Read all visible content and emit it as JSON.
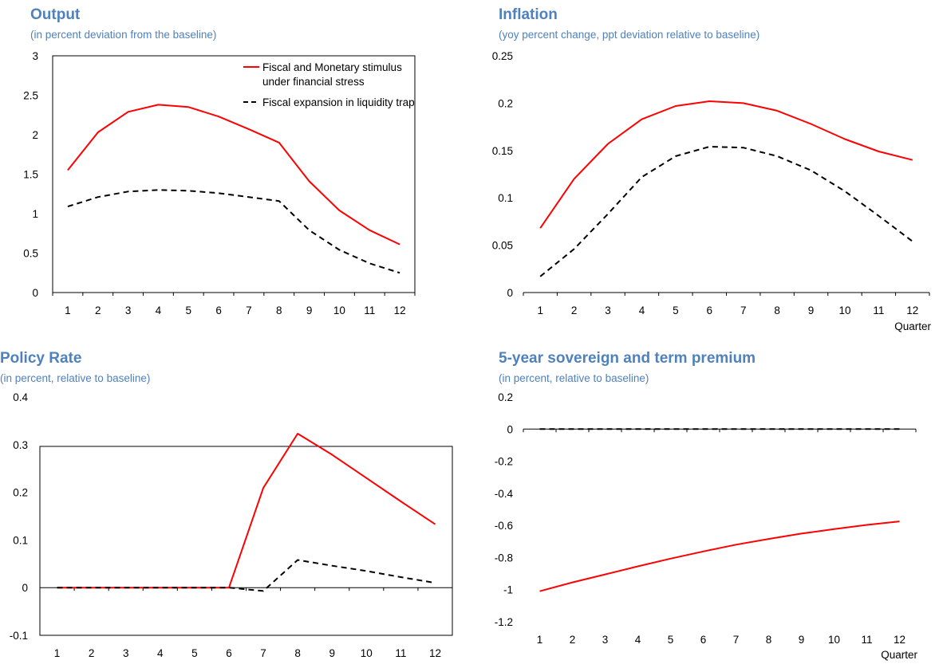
{
  "colors": {
    "title": "#4f81bd",
    "series1": "#ff0000",
    "series2": "#000000"
  },
  "chart_data": [
    {
      "type": "line",
      "title": "Output",
      "subtitle": "(in percent deviation from the baseline)",
      "xlabel": "",
      "x": [
        1,
        2,
        3,
        4,
        5,
        6,
        7,
        8,
        9,
        10,
        11,
        12
      ],
      "ylim": [
        0,
        3
      ],
      "yticks": [
        "0",
        "0.5",
        "1",
        "1.5",
        "2",
        "2.5",
        "3"
      ],
      "ytick_values": [
        0,
        0.5,
        1,
        1.5,
        2,
        2.5,
        3
      ],
      "box": true,
      "legend": {
        "position": "top-right",
        "entries": [
          "Fiscal and Monetary stimulus",
          "under financial stress",
          "Fiscal expansion in liquidity trap"
        ]
      },
      "series": [
        {
          "name": "Fiscal and Monetary stimulus under financial stress",
          "color": "#ff0000",
          "dash": false,
          "values": [
            1.55,
            2.03,
            2.29,
            2.38,
            2.35,
            2.23,
            2.07,
            1.9,
            1.41,
            1.04,
            0.79,
            0.61
          ]
        },
        {
          "name": "Fiscal expansion in liquidity trap",
          "color": "#000000",
          "dash": true,
          "values": [
            1.09,
            1.21,
            1.28,
            1.3,
            1.29,
            1.26,
            1.21,
            1.16,
            0.79,
            0.54,
            0.37,
            0.25
          ]
        }
      ]
    },
    {
      "type": "line",
      "title": "Inflation",
      "subtitle": "(yoy percent change, ppt deviation relative to baseline)",
      "xlabel": "Quarter",
      "x": [
        1,
        2,
        3,
        4,
        5,
        6,
        7,
        8,
        9,
        10,
        11,
        12
      ],
      "ylim": [
        0,
        0.25
      ],
      "yticks": [
        "0",
        "0.05",
        "0.1",
        "0.15",
        "0.2",
        "0.25"
      ],
      "ytick_values": [
        0,
        0.05,
        0.1,
        0.15,
        0.2,
        0.25
      ],
      "box": false,
      "series": [
        {
          "name": "Fiscal and Monetary stimulus under financial stress",
          "color": "#ff0000",
          "dash": false,
          "values": [
            0.068,
            0.12,
            0.157,
            0.183,
            0.197,
            0.202,
            0.2,
            0.192,
            0.178,
            0.162,
            0.149,
            0.14
          ]
        },
        {
          "name": "Fiscal expansion in liquidity trap",
          "color": "#000000",
          "dash": true,
          "values": [
            0.017,
            0.046,
            0.083,
            0.122,
            0.144,
            0.154,
            0.153,
            0.144,
            0.129,
            0.107,
            0.081,
            0.054
          ]
        }
      ]
    },
    {
      "type": "line",
      "title": "Policy Rate",
      "subtitle": "(in percent, relative to baseline)",
      "xlabel": "",
      "x": [
        1,
        2,
        3,
        4,
        5,
        6,
        7,
        8,
        9,
        10,
        11,
        12
      ],
      "ylim": [
        -0.1,
        0.4
      ],
      "yticks": [
        "-0.1",
        "0",
        "0.1",
        "0.2",
        "0.3",
        "0.4"
      ],
      "ytick_values": [
        -0.1,
        0,
        0.1,
        0.2,
        0.3,
        0.4
      ],
      "box": true,
      "series": [
        {
          "name": "Fiscal and Monetary stimulus under financial stress",
          "color": "#ff0000",
          "dash": false,
          "values": [
            0,
            0,
            0,
            0,
            0,
            0,
            0.209,
            0.323,
            0.279,
            0.23,
            0.181,
            0.133
          ]
        },
        {
          "name": "Fiscal expansion in liquidity trap",
          "color": "#000000",
          "dash": true,
          "values": [
            0,
            0,
            0,
            0,
            0,
            0,
            -0.007,
            0.058,
            0.046,
            0.035,
            0.022,
            0.01
          ]
        }
      ]
    },
    {
      "type": "line",
      "title": "5-year sovereign and term premium",
      "subtitle": "(in percent, relative to baseline)",
      "xlabel": "Quarter",
      "x": [
        1,
        2,
        3,
        4,
        5,
        6,
        7,
        8,
        9,
        10,
        11,
        12
      ],
      "ylim": [
        -1.2,
        0.2
      ],
      "yticks": [
        "-1.2",
        "-1",
        "-0.8",
        "-0.6",
        "-0.4",
        "-0.2",
        "0",
        "0.2"
      ],
      "ytick_values": [
        -1.2,
        -1,
        -0.8,
        -0.6,
        -0.4,
        -0.2,
        0,
        0.2
      ],
      "box": false,
      "series": [
        {
          "name": "Fiscal and Monetary stimulus under financial stress",
          "color": "#ff0000",
          "dash": false,
          "values": [
            -1.01,
            -0.955,
            -0.905,
            -0.855,
            -0.807,
            -0.762,
            -0.72,
            -0.684,
            -0.651,
            -0.623,
            -0.597,
            -0.575
          ]
        },
        {
          "name": "Fiscal expansion in liquidity trap",
          "color": "#000000",
          "dash": true,
          "values": [
            0,
            0,
            0,
            0,
            0,
            0,
            0,
            0,
            0,
            0,
            0,
            0
          ]
        }
      ]
    }
  ]
}
